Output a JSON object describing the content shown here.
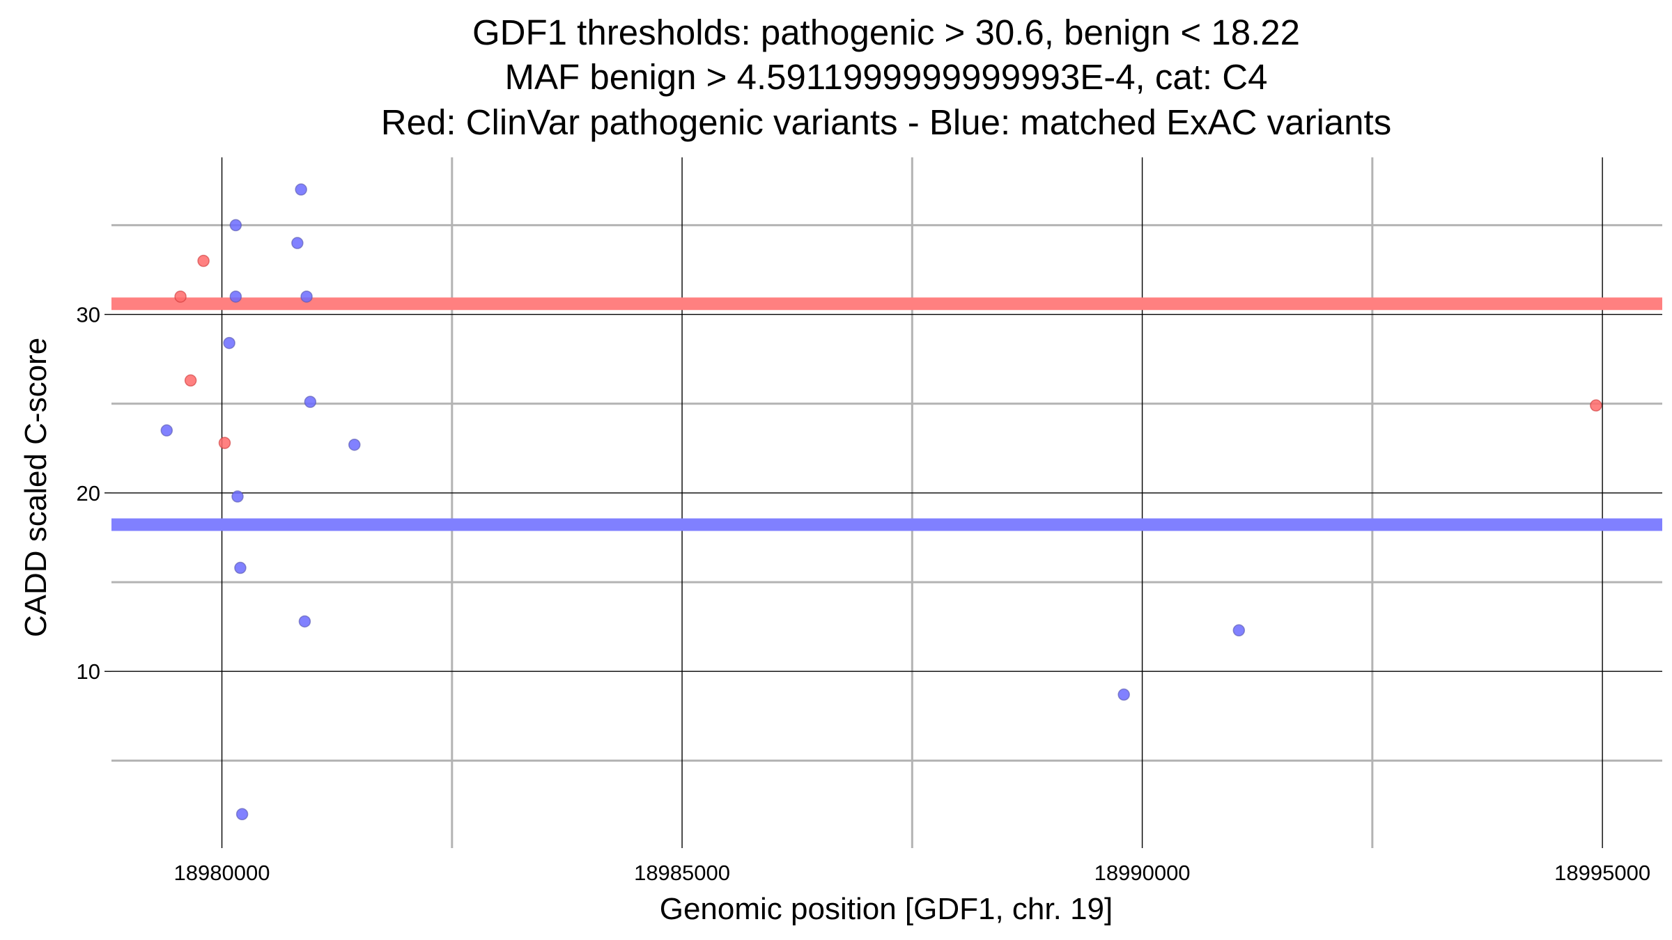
{
  "chart_data": {
    "type": "scatter",
    "title": [
      "GDF1 thresholds: pathogenic > 30.6, benign < 18.22",
      "MAF benign > 4.5911999999999993E-4, cat: C4",
      "Red: ClinVar pathogenic variants - Blue: matched ExAC variants"
    ],
    "xlabel": "Genomic position [GDF1, chr. 19]",
    "ylabel": "CADD scaled C-score",
    "xlim": [
      18978800,
      18995650
    ],
    "ylim": [
      0.1,
      38.8
    ],
    "x_major_ticks": [
      18980000,
      18985000,
      18990000,
      18995000
    ],
    "x_minor_ticks": [
      18982500,
      18987500,
      18992500
    ],
    "x_tick_labels": [
      "18980000",
      "18985000",
      "18990000",
      "18995000"
    ],
    "y_major_ticks": [
      10,
      20,
      30
    ],
    "y_minor_ticks": [
      5,
      15,
      25,
      35
    ],
    "y_tick_labels": [
      "10",
      "20",
      "30"
    ],
    "thresholds": {
      "pathogenic": {
        "value": 30.6,
        "color": "#ff8080"
      },
      "benign": {
        "value": 18.22,
        "color": "#8080ff"
      }
    },
    "colors": {
      "pathogenic": "#ff6b6b",
      "benign": "#6b6bff",
      "stroke": "#5555aa"
    },
    "series": [
      {
        "name": "ClinVar pathogenic variants",
        "color": "red",
        "points": [
          {
            "x": 18979550,
            "y": 31.0
          },
          {
            "x": 18979660,
            "y": 26.3
          },
          {
            "x": 18979800,
            "y": 33.0
          },
          {
            "x": 18980030,
            "y": 22.8
          },
          {
            "x": 18994930,
            "y": 24.9
          }
        ]
      },
      {
        "name": "matched ExAC variants",
        "color": "blue",
        "points": [
          {
            "x": 18979400,
            "y": 23.5
          },
          {
            "x": 18980080,
            "y": 28.4
          },
          {
            "x": 18980150,
            "y": 35.0
          },
          {
            "x": 18980150,
            "y": 31.0
          },
          {
            "x": 18980170,
            "y": 19.8
          },
          {
            "x": 18980200,
            "y": 15.8
          },
          {
            "x": 18980220,
            "y": 2.0
          },
          {
            "x": 18980820,
            "y": 34.0
          },
          {
            "x": 18980860,
            "y": 37.0
          },
          {
            "x": 18980900,
            "y": 12.8
          },
          {
            "x": 18980920,
            "y": 31.0
          },
          {
            "x": 18980960,
            "y": 25.1
          },
          {
            "x": 18981440,
            "y": 22.7
          },
          {
            "x": 18989800,
            "y": 8.7
          },
          {
            "x": 18991050,
            "y": 12.3
          }
        ]
      }
    ]
  }
}
